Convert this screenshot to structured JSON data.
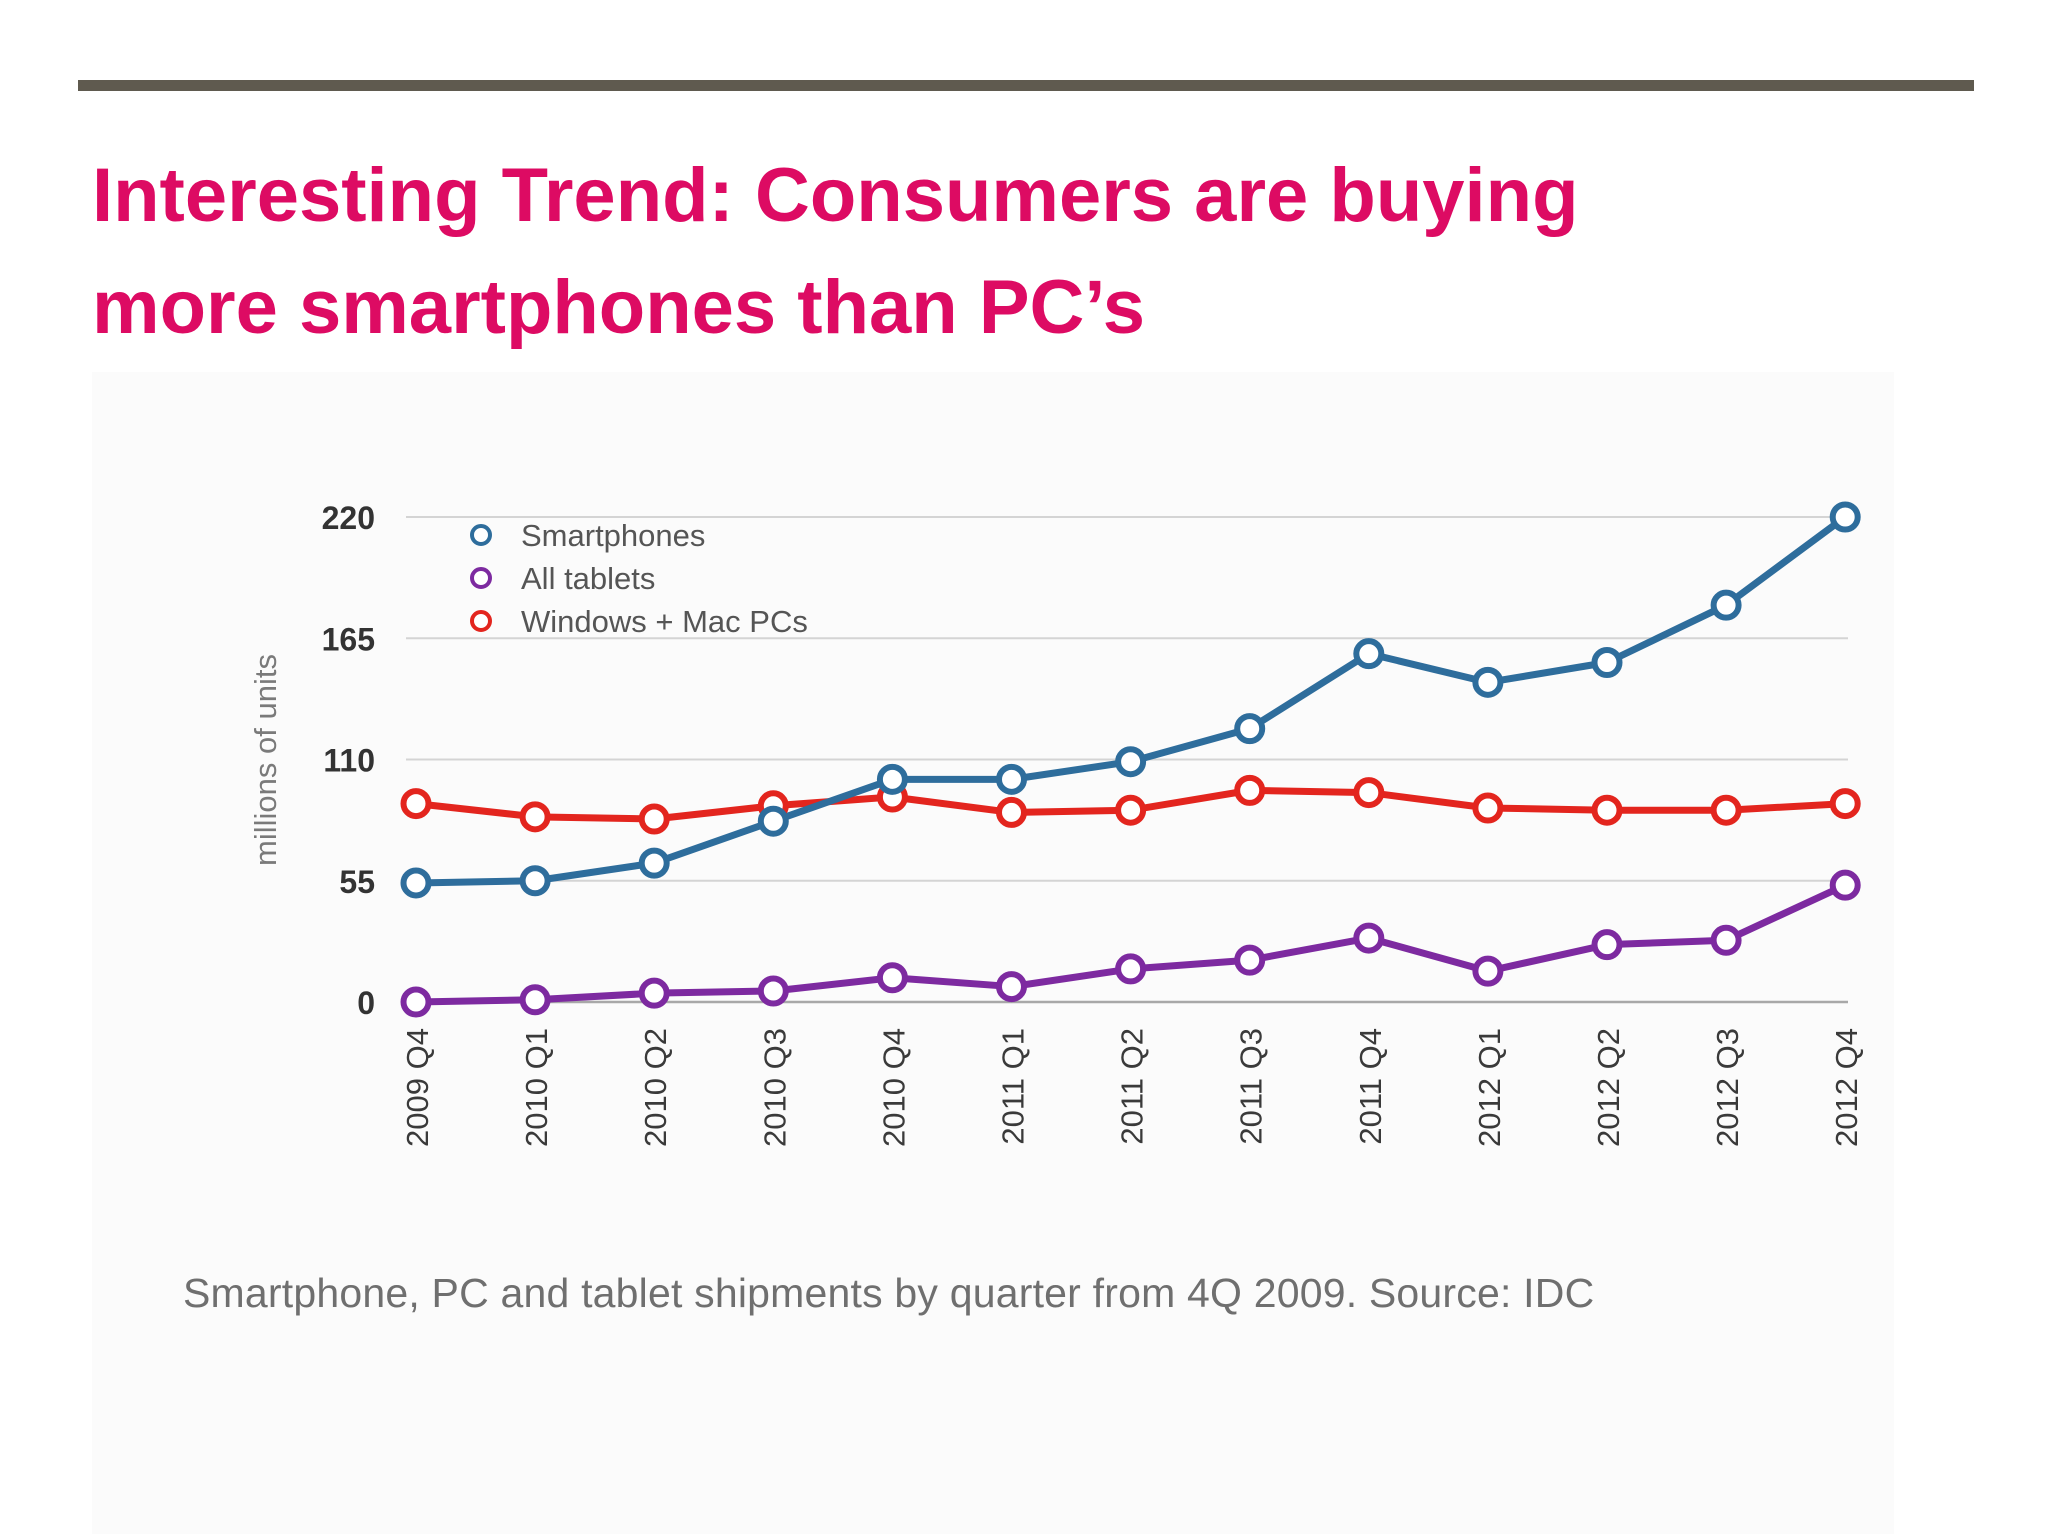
{
  "slide": {
    "title_line1": "Interesting Trend: Consumers are buying",
    "title_line2": "more smartphones than PC’s",
    "caption": "Smartphone, PC and tablet shipments by quarter from 4Q 2009. Source: IDC",
    "accent_color": "#dd0b63",
    "rule_color": "#5f5a4f"
  },
  "chart_data": {
    "type": "line",
    "title": "",
    "xlabel": "",
    "ylabel": "millions of units",
    "categories": [
      "2009 Q4",
      "2010 Q1",
      "2010 Q2",
      "2010 Q3",
      "2010 Q4",
      "2011 Q1",
      "2011 Q2",
      "2011 Q3",
      "2011 Q4",
      "2012 Q1",
      "2012 Q2",
      "2012 Q3",
      "2012 Q4"
    ],
    "ylim": [
      0,
      220
    ],
    "yticks": [
      0,
      55,
      110,
      165,
      220
    ],
    "grid": true,
    "legend_position": "top-left",
    "series": [
      {
        "name": "Smartphones",
        "color": "#2e6d9c",
        "values": [
          54,
          55,
          63,
          82,
          101,
          101,
          109,
          124,
          158,
          145,
          154,
          180,
          220
        ]
      },
      {
        "name": "All tablets",
        "color": "#7d2aa0",
        "values": [
          0,
          1,
          4,
          5,
          11,
          7,
          15,
          19,
          29,
          14,
          26,
          28,
          53
        ]
      },
      {
        "name": "Windows + Mac PCs",
        "color": "#e3251e",
        "values": [
          90,
          84,
          83,
          89,
          93,
          86,
          87,
          96,
          95,
          88,
          87,
          87,
          90
        ]
      }
    ]
  }
}
